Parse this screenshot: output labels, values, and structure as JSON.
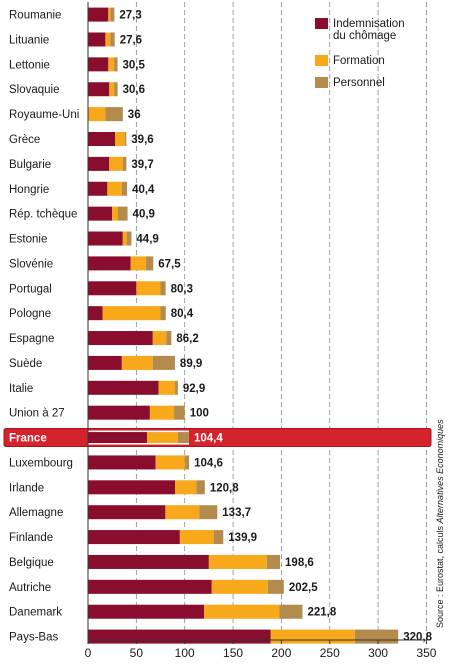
{
  "chart_data": {
    "type": "bar",
    "orientation": "horizontal",
    "stacked": true,
    "categories": [
      "Roumanie",
      "Lituanie",
      "Lettonie",
      "Slovaquie",
      "Royaume-Uni",
      "Grèce",
      "Bulgarie",
      "Hongrie",
      "Rép. tchèque",
      "Estonie",
      "Slovénie",
      "Portugal",
      "Pologne",
      "Espagne",
      "Suède",
      "Italie",
      "Union à 27",
      "France",
      "Luxembourg",
      "Irlande",
      "Allemagne",
      "Finlande",
      "Belgique",
      "Autriche",
      "Danemark",
      "Pays-Bas"
    ],
    "totals": [
      27.3,
      27.6,
      30.5,
      30.6,
      36,
      39.6,
      39.7,
      40.4,
      40.9,
      44.9,
      67.5,
      80.3,
      80.4,
      86.2,
      89.9,
      92.9,
      100,
      104.4,
      104.6,
      120.8,
      133.7,
      139.9,
      198.6,
      202.5,
      221.8,
      320.8
    ],
    "total_labels": [
      "27,3",
      "27,6",
      "30,5",
      "30,6",
      "36",
      "39,6",
      "39,7",
      "40,4",
      "40,9",
      "44,9",
      "67,5",
      "80,3",
      "80,4",
      "86,2",
      "89,9",
      "92,9",
      "100",
      "104,4",
      "104,6",
      "120,8",
      "133,7",
      "139,9",
      "198,6",
      "202,5",
      "221,8",
      "320,8"
    ],
    "series": [
      {
        "name": "Indemnisation du chômage",
        "color": "#8b0d2e",
        "values": [
          21,
          18,
          21,
          22,
          0,
          28,
          22,
          20,
          25,
          36,
          44,
          50,
          15,
          67,
          35,
          73,
          64,
          61,
          70,
          90,
          80,
          95,
          125,
          128,
          120,
          189
        ]
      },
      {
        "name": "Formation",
        "color": "#f7a81b",
        "values": [
          2,
          5,
          6,
          5,
          18,
          10,
          14,
          15,
          6,
          4,
          16,
          25,
          60,
          14,
          32,
          17,
          25,
          32,
          30,
          22,
          35,
          35,
          60,
          58,
          78,
          87
        ]
      },
      {
        "name": "Personnel",
        "color": "#b38b4d",
        "values": [
          4.3,
          4.6,
          3.5,
          3.6,
          18,
          1.6,
          3.7,
          5.4,
          9.9,
          4.9,
          7.5,
          5.3,
          5.4,
          5.2,
          22.9,
          2.9,
          11,
          11.4,
          4.6,
          8.8,
          18.7,
          9.9,
          13.6,
          16.5,
          23.8,
          44.8
        ]
      }
    ],
    "legend_lines": [
      [
        "Indemnisation",
        "du chômage"
      ],
      [
        "Formation"
      ],
      [
        "Personnel"
      ]
    ],
    "highlight_category": "France",
    "highlight_color": "#d5232d",
    "xlim": [
      0,
      350
    ],
    "xticks": [
      0,
      50,
      100,
      150,
      200,
      250,
      300,
      350
    ],
    "grid": "vertical dashed",
    "legend_position": "top-right",
    "source_prefix": "Source : Eurostat, calculs ",
    "source_italic": "Alternatives Economiques"
  }
}
